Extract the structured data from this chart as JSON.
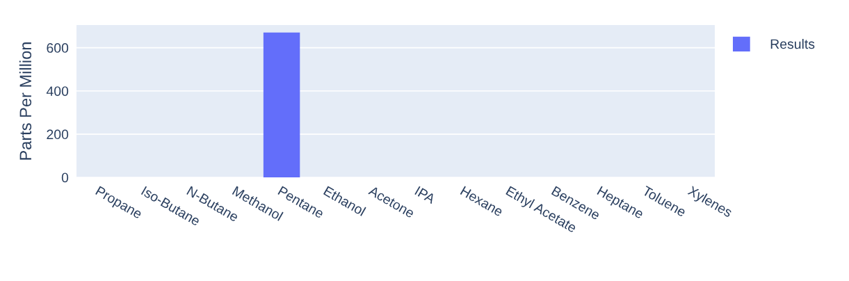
{
  "chart_data": {
    "type": "bar",
    "ylabel": "Parts Per Million",
    "categories": [
      "Propane",
      "Iso-Butane",
      "N-Butane",
      "Methanol",
      "Pentane",
      "Ethanol",
      "Acetone",
      "IPA",
      "Hexane",
      "Ethyl Acetate",
      "Benzene",
      "Heptane",
      "Toluene",
      "Xylenes"
    ],
    "series": [
      {
        "name": "Results",
        "color": "#636efa",
        "values": [
          0,
          0,
          0,
          0,
          670,
          0,
          0,
          0,
          0,
          0,
          0,
          0,
          0,
          0
        ]
      }
    ],
    "ylim": [
      0,
      705
    ],
    "yticks": [
      0,
      200,
      400,
      600
    ],
    "grid": "y",
    "legend": "top right"
  }
}
